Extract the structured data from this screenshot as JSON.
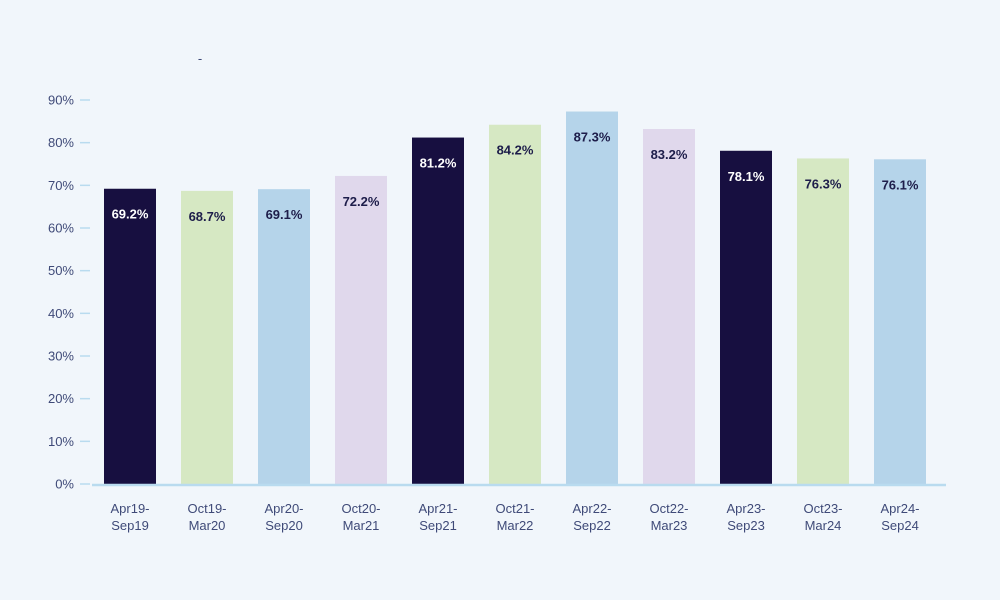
{
  "chart_data": {
    "type": "bar",
    "title": "",
    "xlabel": "",
    "ylabel": "",
    "stray_mark": "-",
    "ylim": [
      0,
      90
    ],
    "yticks": [
      0,
      10,
      20,
      30,
      40,
      50,
      60,
      70,
      80,
      90
    ],
    "ytick_labels": [
      "0%",
      "10%",
      "20%",
      "30%",
      "40%",
      "50%",
      "60%",
      "70%",
      "80%",
      "90%"
    ],
    "grid": false,
    "categories": [
      [
        "Apr19-",
        "Sep19"
      ],
      [
        "Oct19-",
        "Mar20"
      ],
      [
        "Apr20-",
        "Sep20"
      ],
      [
        "Oct20-",
        "Mar21"
      ],
      [
        "Apr21-",
        "Sep21"
      ],
      [
        "Oct21-",
        "Mar22"
      ],
      [
        "Apr22-",
        "Sep22"
      ],
      [
        "Oct22-",
        "Mar23"
      ],
      [
        "Apr23-",
        "Sep23"
      ],
      [
        "Oct23-",
        "Mar24"
      ],
      [
        "Apr24-",
        "Sep24"
      ]
    ],
    "values": [
      69.2,
      68.7,
      69.1,
      72.2,
      81.2,
      84.2,
      87.3,
      83.2,
      78.1,
      76.3,
      76.1
    ],
    "value_labels": [
      "69.2%",
      "68.7%",
      "69.1%",
      "72.2%",
      "81.2%",
      "84.2%",
      "87.3%",
      "83.2%",
      "78.1%",
      "76.3%",
      "76.1%"
    ],
    "bar_colors": [
      "#170f40",
      "#d6e8c3",
      "#b5d4ea",
      "#e0d8ec",
      "#170f40",
      "#d6e8c3",
      "#b5d4ea",
      "#e0d8ec",
      "#170f40",
      "#d6e8c3",
      "#b5d4ea"
    ],
    "label_colors": [
      "#ffffff",
      "#1d1d4a",
      "#1d1d4a",
      "#1d1d4a",
      "#ffffff",
      "#1d1d4a",
      "#1d1d4a",
      "#1d1d4a",
      "#ffffff",
      "#1d1d4a",
      "#1d1d4a"
    ],
    "axis_color": "#b9dbef",
    "text_color": "#3f4a78"
  }
}
